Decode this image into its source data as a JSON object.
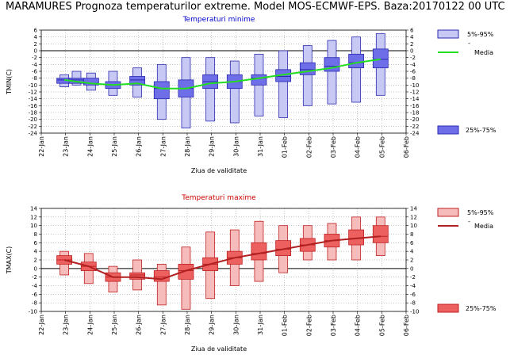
{
  "page_title": "MARAMURES  Prognoza temperaturilor extreme.  Model MOS-ECMWF-EPS. Baza:20170122 00 UTC",
  "chart_data": [
    {
      "type": "box",
      "title": "Temperaturi minime",
      "title_color": "#0000cc",
      "ylabel": "TMIN(C)",
      "xlabel": "Ziua de validitate",
      "ylim": [
        -24,
        6
      ],
      "ytick_step": 2,
      "x_ticks": [
        "22-Jan",
        "23-Jan",
        "24-Jan",
        "25-Jan",
        "26-Jan",
        "27-Jan",
        "28-Jan",
        "29-Jan",
        "30-Jan",
        "31-Jan",
        "01-Feb",
        "02-Feb",
        "03-Feb",
        "04-Feb",
        "05-Feb",
        "06-Feb"
      ],
      "grid": true,
      "colors": {
        "box_light": "#c8c8f4",
        "box_dark": "#6e6ee8",
        "edge": "#2a2ab0",
        "media": "#22dd22"
      },
      "legend": {
        "p5_95": "5%-95%",
        "median_marker": "-",
        "media": "Media",
        "p25_75": "25%-75%"
      },
      "boxes": [
        {
          "x": 0.95,
          "p5": -10.5,
          "p25": -9.5,
          "median": -8.5,
          "p75": -8,
          "p95": -7
        },
        {
          "x": 1.45,
          "p5": -10,
          "p25": -9.5,
          "median": -8.5,
          "p75": -8,
          "p95": -6
        },
        {
          "x": 2.05,
          "p5": -11.5,
          "p25": -10,
          "median": -9.5,
          "p75": -8,
          "p95": -6.5
        },
        {
          "x": 2.95,
          "p5": -13,
          "p25": -11,
          "median": -10,
          "p75": -9,
          "p95": -6
        },
        {
          "x": 3.95,
          "p5": -13.5,
          "p25": -10,
          "median": -8.5,
          "p75": -7.5,
          "p95": -5
        },
        {
          "x": 4.95,
          "p5": -20,
          "p25": -14,
          "median": -11,
          "p75": -9,
          "p95": -4
        },
        {
          "x": 5.95,
          "p5": -22.5,
          "p25": -13.5,
          "median": -11,
          "p75": -8.5,
          "p95": -2
        },
        {
          "x": 6.95,
          "p5": -20.5,
          "p25": -11,
          "median": -9,
          "p75": -7,
          "p95": -2
        },
        {
          "x": 7.95,
          "p5": -21,
          "p25": -11,
          "median": -9,
          "p75": -7,
          "p95": -3
        },
        {
          "x": 8.95,
          "p5": -19,
          "p25": -10,
          "median": -8,
          "p75": -7,
          "p95": -1
        },
        {
          "x": 9.95,
          "p5": -19.5,
          "p25": -9,
          "median": -7.5,
          "p75": -5.5,
          "p95": 0
        },
        {
          "x": 10.95,
          "p5": -16,
          "p25": -7,
          "median": -5.5,
          "p75": -3.5,
          "p95": 1.5
        },
        {
          "x": 11.95,
          "p5": -15.5,
          "p25": -6,
          "median": -4.5,
          "p75": -2,
          "p95": 3
        },
        {
          "x": 12.95,
          "p5": -15,
          "p25": -5,
          "median": -3.5,
          "p75": -1,
          "p95": 4
        },
        {
          "x": 13.95,
          "p5": -13,
          "p25": -5,
          "median": -2.5,
          "p75": 0.5,
          "p95": 5
        }
      ],
      "media": [
        {
          "x": 0.95,
          "y": -8.5
        },
        {
          "x": 1.45,
          "y": -9
        },
        {
          "x": 2.05,
          "y": -9.5
        },
        {
          "x": 2.95,
          "y": -10
        },
        {
          "x": 3.95,
          "y": -9.5
        },
        {
          "x": 4.95,
          "y": -11
        },
        {
          "x": 5.95,
          "y": -11
        },
        {
          "x": 6.95,
          "y": -9.5
        },
        {
          "x": 7.95,
          "y": -9
        },
        {
          "x": 8.95,
          "y": -8
        },
        {
          "x": 9.95,
          "y": -7
        },
        {
          "x": 10.95,
          "y": -6
        },
        {
          "x": 11.95,
          "y": -5
        },
        {
          "x": 12.95,
          "y": -3.5
        },
        {
          "x": 13.95,
          "y": -2.5
        }
      ]
    },
    {
      "type": "box",
      "title": "Temperaturi maxime",
      "title_color": "#cc0000",
      "ylabel": "TMAX(C)",
      "xlabel": "Ziua de validitate",
      "ylim": [
        -10,
        14
      ],
      "ytick_step": 2,
      "x_ticks": [
        "22-Jan",
        "23-Jan",
        "24-Jan",
        "25-Jan",
        "26-Jan",
        "27-Jan",
        "28-Jan",
        "29-Jan",
        "30-Jan",
        "31-Jan",
        "01-Feb",
        "02-Feb",
        "03-Feb",
        "04-Feb",
        "05-Feb",
        "06-Feb"
      ],
      "grid": true,
      "colors": {
        "box_light": "#f6bcbc",
        "box_dark": "#ec6060",
        "edge": "#c02020",
        "media": "#b02020"
      },
      "legend": {
        "p5_95": "5%-95%",
        "median_marker": "-",
        "media": "Media",
        "p25_75": "25%-75%"
      },
      "boxes": [
        {
          "x": 0.95,
          "p5": -1.5,
          "p25": 1,
          "median": 2,
          "p75": 3,
          "p95": 4
        },
        {
          "x": 1.95,
          "p5": -3.5,
          "p25": -0.5,
          "median": 0.5,
          "p75": 1.5,
          "p95": 3.5
        },
        {
          "x": 2.95,
          "p5": -5.5,
          "p25": -3,
          "median": -2,
          "p75": -1,
          "p95": 0.5
        },
        {
          "x": 3.95,
          "p5": -5,
          "p25": -2.5,
          "median": -1.5,
          "p75": -1,
          "p95": 2
        },
        {
          "x": 4.95,
          "p5": -8.5,
          "p25": -3,
          "median": -2,
          "p75": -0.5,
          "p95": 1
        },
        {
          "x": 5.95,
          "p5": -9.5,
          "p25": -2.5,
          "median": -0.5,
          "p75": 1,
          "p95": 5
        },
        {
          "x": 6.95,
          "p5": -7,
          "p25": -0.5,
          "median": 1,
          "p75": 2.5,
          "p95": 8.5
        },
        {
          "x": 7.95,
          "p5": -4,
          "p25": 1,
          "median": 2.5,
          "p75": 4,
          "p95": 9
        },
        {
          "x": 8.95,
          "p5": -3,
          "p25": 2,
          "median": 3.5,
          "p75": 6,
          "p95": 11
        },
        {
          "x": 9.95,
          "p5": -1,
          "p25": 3,
          "median": 4.5,
          "p75": 6.5,
          "p95": 10
        },
        {
          "x": 10.95,
          "p5": 2,
          "p25": 4,
          "median": 5.5,
          "p75": 7,
          "p95": 10
        },
        {
          "x": 11.95,
          "p5": 2,
          "p25": 5,
          "median": 6.5,
          "p75": 8,
          "p95": 10.5
        },
        {
          "x": 12.95,
          "p5": 2,
          "p25": 5.5,
          "median": 7,
          "p75": 9,
          "p95": 12
        },
        {
          "x": 13.95,
          "p5": 3,
          "p25": 6,
          "median": 7.5,
          "p75": 10,
          "p95": 12
        }
      ],
      "media": [
        {
          "x": 0.95,
          "y": 2
        },
        {
          "x": 1.95,
          "y": 0.5
        },
        {
          "x": 2.95,
          "y": -2
        },
        {
          "x": 3.95,
          "y": -2
        },
        {
          "x": 4.95,
          "y": -2.5
        },
        {
          "x": 5.95,
          "y": -0.5
        },
        {
          "x": 6.95,
          "y": 1
        },
        {
          "x": 7.95,
          "y": 2.5
        },
        {
          "x": 8.95,
          "y": 3.5
        },
        {
          "x": 9.95,
          "y": 4.5
        },
        {
          "x": 10.95,
          "y": 5.5
        },
        {
          "x": 11.95,
          "y": 6.5
        },
        {
          "x": 12.95,
          "y": 7
        },
        {
          "x": 13.95,
          "y": 7.5
        }
      ]
    }
  ]
}
